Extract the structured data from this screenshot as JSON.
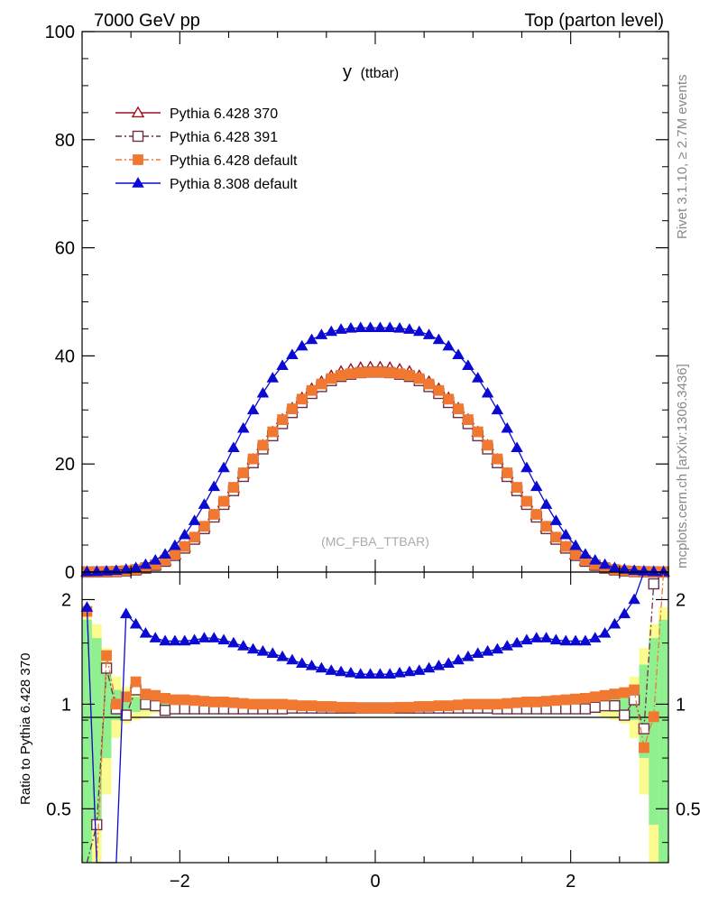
{
  "header": {
    "left": "7000 GeV pp",
    "right": "Top (parton level)"
  },
  "side_labels": {
    "rivet": "Rivet 3.1.10, ≥ 2.7M events",
    "mcplots": "mcplots.cern.ch [arXiv:1306.3436]"
  },
  "analysis_label": "(MC_FBA_TTBAR)",
  "chart_data": [
    {
      "type": "line",
      "title": "y (ttbar)",
      "title_main": "y",
      "title_sub": "(ttbar)",
      "xlim": [
        -3.0,
        3.0
      ],
      "ylim": [
        0,
        100
      ],
      "yticks": [
        0,
        20,
        40,
        60,
        80,
        100
      ],
      "ytick_labels": [
        "0",
        "20",
        "40",
        "60",
        "80",
        "100"
      ],
      "legend_position": "top-left",
      "x": [
        -2.95,
        -2.85,
        -2.75,
        -2.65,
        -2.55,
        -2.45,
        -2.35,
        -2.25,
        -2.15,
        -2.05,
        -1.95,
        -1.85,
        -1.75,
        -1.65,
        -1.55,
        -1.45,
        -1.35,
        -1.25,
        -1.15,
        -1.05,
        -0.95,
        -0.85,
        -0.75,
        -0.65,
        -0.55,
        -0.45,
        -0.35,
        -0.25,
        -0.15,
        -0.05,
        0.05,
        0.15,
        0.25,
        0.35,
        0.45,
        0.55,
        0.65,
        0.75,
        0.85,
        0.95,
        1.05,
        1.15,
        1.25,
        1.35,
        1.45,
        1.55,
        1.65,
        1.75,
        1.85,
        1.95,
        2.05,
        2.15,
        2.25,
        2.35,
        2.45,
        2.55,
        2.65,
        2.75,
        2.85,
        2.95
      ],
      "series": [
        {
          "name": "Pythia 6.428 370",
          "color": "#a01018",
          "marker": "open-triangle",
          "dash": "solid",
          "values": [
            0.01,
            0.02,
            0.05,
            0.1,
            0.22,
            0.42,
            0.78,
            1.3,
            2.1,
            3.2,
            4.6,
            6.3,
            8.3,
            10.5,
            12.9,
            15.5,
            18.2,
            20.8,
            23.4,
            25.9,
            28.2,
            30.3,
            32.2,
            33.9,
            35.2,
            36.3,
            37.1,
            37.5,
            37.8,
            37.9,
            37.9,
            37.8,
            37.5,
            37.1,
            36.3,
            35.2,
            33.9,
            32.2,
            30.3,
            28.2,
            25.9,
            23.4,
            20.8,
            18.2,
            15.5,
            12.9,
            10.5,
            8.3,
            6.3,
            4.6,
            3.2,
            2.1,
            1.3,
            0.78,
            0.42,
            0.22,
            0.1,
            0.05,
            0.02,
            0.01
          ]
        },
        {
          "name": "Pythia 6.428 391",
          "color": "#6a3048",
          "marker": "open-square",
          "dash": "dashdot",
          "values": [
            0.01,
            0.02,
            0.05,
            0.1,
            0.21,
            0.4,
            0.74,
            1.24,
            2.0,
            3.08,
            4.44,
            6.08,
            8.04,
            10.19,
            12.53,
            15.07,
            17.7,
            20.24,
            22.79,
            25.23,
            27.47,
            29.52,
            31.38,
            33.05,
            34.32,
            35.42,
            36.2,
            36.6,
            36.9,
            37.0,
            37.0,
            36.9,
            36.6,
            36.2,
            35.42,
            34.32,
            33.05,
            31.38,
            29.52,
            27.47,
            25.23,
            22.79,
            20.24,
            17.7,
            15.07,
            12.53,
            10.19,
            8.04,
            6.08,
            4.44,
            3.08,
            2.0,
            1.24,
            0.74,
            0.4,
            0.21,
            0.1,
            0.05,
            0.02,
            0.01
          ]
        },
        {
          "name": "Pythia 6.428 default",
          "color": "#f07830",
          "marker": "filled-square",
          "dash": "dashdot",
          "values": [
            0.01,
            0.02,
            0.06,
            0.13,
            0.26,
            0.47,
            0.84,
            1.38,
            2.2,
            3.31,
            4.74,
            6.46,
            8.47,
            10.68,
            13.1,
            15.68,
            18.36,
            20.93,
            23.48,
            25.95,
            28.2,
            30.2,
            32.0,
            33.6,
            34.8,
            35.8,
            36.4,
            36.7,
            36.9,
            37.0,
            37.0,
            36.9,
            36.7,
            36.4,
            35.8,
            34.8,
            33.6,
            32.0,
            30.2,
            28.2,
            25.95,
            23.48,
            20.93,
            18.36,
            15.68,
            13.1,
            10.68,
            8.47,
            6.46,
            4.74,
            3.31,
            2.2,
            1.38,
            0.84,
            0.47,
            0.26,
            0.13,
            0.06,
            0.02,
            0.01
          ]
        },
        {
          "name": "Pythia 8.308 default",
          "color": "#0a0ad2",
          "marker": "filled-triangle",
          "dash": "solid",
          "values": [
            0.02,
            0.08,
            0.18,
            0.3,
            0.5,
            0.8,
            1.4,
            2.2,
            3.3,
            4.9,
            6.9,
            9.5,
            12.5,
            15.8,
            19.3,
            23.0,
            26.6,
            30.0,
            33.1,
            35.9,
            38.2,
            40.2,
            41.8,
            43.0,
            43.9,
            44.5,
            44.9,
            45.1,
            45.2,
            45.2,
            45.2,
            45.2,
            45.1,
            44.9,
            44.5,
            43.9,
            43.0,
            41.8,
            40.2,
            38.2,
            35.9,
            33.1,
            30.0,
            26.6,
            23.0,
            19.3,
            15.8,
            12.5,
            9.5,
            6.9,
            4.9,
            3.3,
            2.2,
            1.4,
            0.8,
            0.5,
            0.3,
            0.18,
            0.08,
            0.02
          ]
        }
      ]
    },
    {
      "type": "line",
      "ylabel": "Ratio to Pythia 6.428 370",
      "xlim": [
        -3.0,
        3.0
      ],
      "ylim": [
        0.35,
        2.4
      ],
      "y_scale": "log",
      "xticks": [
        -2,
        0,
        2
      ],
      "xtick_labels": [
        "−2",
        "0",
        "2"
      ],
      "yticks": [
        0.5,
        1,
        2
      ],
      "ytick_labels": [
        "0.5",
        "1",
        "2"
      ],
      "reference_line": 1,
      "uncertainty_bands": [
        {
          "color": "#fbfb90",
          "label_of": "Pythia 6.428 370",
          "widths": [
            0.9,
            0.7,
            0.45,
            0.2,
            0.12,
            0.1,
            0.08,
            0.06,
            0.05,
            0.04,
            0.03,
            0.025,
            0.02,
            0.02,
            0.018,
            0.015,
            0.015,
            0.012,
            0.012,
            0.01,
            0.01,
            0.01,
            0.01,
            0.01,
            0.01,
            0.01,
            0.01,
            0.01,
            0.01,
            0.01,
            0.01,
            0.01,
            0.01,
            0.01,
            0.01,
            0.01,
            0.01,
            0.01,
            0.01,
            0.01,
            0.01,
            0.012,
            0.012,
            0.015,
            0.015,
            0.018,
            0.02,
            0.02,
            0.025,
            0.03,
            0.04,
            0.05,
            0.06,
            0.08,
            0.1,
            0.12,
            0.2,
            0.45,
            0.7,
            0.9
          ]
        },
        {
          "color": "#90f090",
          "label_of": "Pythia 6.428 370",
          "widths": [
            0.75,
            0.55,
            0.3,
            0.1,
            0.06,
            0.05,
            0.04,
            0.03,
            0.025,
            0.02,
            0.015,
            0.012,
            0.01,
            0.01,
            0.009,
            0.008,
            0.008,
            0.006,
            0.006,
            0.005,
            0.005,
            0.005,
            0.005,
            0.005,
            0.005,
            0.005,
            0.005,
            0.005,
            0.005,
            0.005,
            0.005,
            0.005,
            0.005,
            0.005,
            0.005,
            0.005,
            0.005,
            0.005,
            0.005,
            0.005,
            0.005,
            0.006,
            0.006,
            0.008,
            0.008,
            0.009,
            0.01,
            0.01,
            0.012,
            0.015,
            0.02,
            0.025,
            0.03,
            0.04,
            0.05,
            0.06,
            0.1,
            0.3,
            0.55,
            0.75
          ]
        }
      ],
      "series": [
        {
          "name": "Pythia 6.428 391",
          "color": "#6a3048",
          "marker": "open-square",
          "dash": "dashdot",
          "values": [
            null,
            0.45,
            1.27,
            0.97,
            0.93,
            1.1,
            1.0,
            0.99,
            0.96,
            0.97,
            0.97,
            0.97,
            0.97,
            0.97,
            0.97,
            0.97,
            0.97,
            0.97,
            0.97,
            0.97,
            0.97,
            0.975,
            0.975,
            0.975,
            0.975,
            0.975,
            0.975,
            0.975,
            0.975,
            0.975,
            0.975,
            0.975,
            0.975,
            0.975,
            0.975,
            0.975,
            0.975,
            0.975,
            0.975,
            0.975,
            0.975,
            0.975,
            0.97,
            0.97,
            0.97,
            0.97,
            0.97,
            0.97,
            0.97,
            0.97,
            0.97,
            0.97,
            0.98,
            0.99,
            0.99,
            0.93,
            1.03,
            0.85,
            2.22,
            null
          ]
        },
        {
          "name": "Pythia 6.428 default",
          "color": "#f07830",
          "marker": "filled-square",
          "dash": "dashdot",
          "values": [
            1.85,
            null,
            1.38,
            1.0,
            1.05,
            1.16,
            1.07,
            1.06,
            1.04,
            1.03,
            1.03,
            1.025,
            1.02,
            1.015,
            1.015,
            1.01,
            1.005,
            1.0,
            1.0,
            1.0,
            1.0,
            0.995,
            0.99,
            0.99,
            0.985,
            0.985,
            0.98,
            0.98,
            0.975,
            0.975,
            0.975,
            0.975,
            0.98,
            0.98,
            0.985,
            0.985,
            0.99,
            0.99,
            0.995,
            1.0,
            1.0,
            1.0,
            1.0,
            1.005,
            1.01,
            1.015,
            1.015,
            1.02,
            1.025,
            1.03,
            1.035,
            1.04,
            1.05,
            1.06,
            1.07,
            1.08,
            1.1,
            0.75,
            0.92,
            null
          ]
        },
        {
          "name": "Pythia 8.308 default",
          "color": "#0a0ad2",
          "marker": "filled-triangle",
          "dash": "solid",
          "values": [
            1.9,
            null,
            null,
            null,
            1.82,
            1.7,
            1.6,
            1.55,
            1.52,
            1.52,
            1.52,
            1.53,
            1.55,
            1.55,
            1.53,
            1.5,
            1.47,
            1.44,
            1.42,
            1.4,
            1.37,
            1.34,
            1.31,
            1.29,
            1.27,
            1.25,
            1.24,
            1.23,
            1.22,
            1.22,
            1.22,
            1.22,
            1.23,
            1.24,
            1.25,
            1.27,
            1.29,
            1.31,
            1.34,
            1.37,
            1.4,
            1.42,
            1.44,
            1.47,
            1.5,
            1.53,
            1.55,
            1.55,
            1.53,
            1.52,
            1.52,
            1.52,
            1.55,
            1.6,
            1.7,
            1.82,
            2.0,
            null,
            null,
            null
          ]
        }
      ]
    }
  ]
}
